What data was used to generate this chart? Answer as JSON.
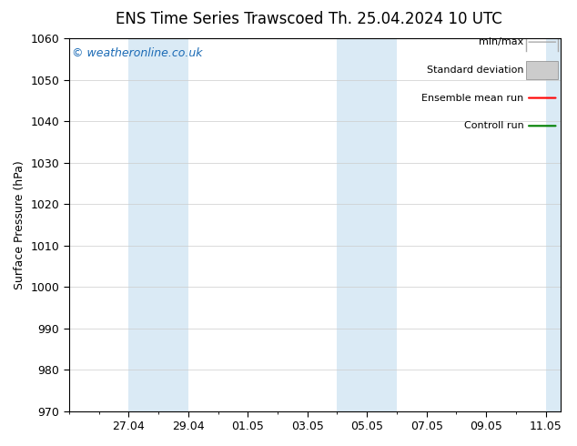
{
  "title_left": "ENS Time Series Trawscoed",
  "title_right": "Th. 25.04.2024 10 UTC",
  "ylabel": "Surface Pressure (hPa)",
  "ylim": [
    970,
    1060
  ],
  "yticks": [
    970,
    980,
    990,
    1000,
    1010,
    1020,
    1030,
    1040,
    1050,
    1060
  ],
  "xtick_labels": [
    "27.04",
    "29.04",
    "01.05",
    "03.05",
    "05.05",
    "07.05",
    "09.05",
    "11.05"
  ],
  "shaded_bands": [
    {
      "day0": 27,
      "month0": 4,
      "day1": 29,
      "month1": 4
    },
    {
      "day0": 4,
      "month0": 5,
      "day1": 6,
      "month1": 5
    },
    {
      "day0": 11,
      "month0": 5,
      "day1": 12,
      "month1": 5
    }
  ],
  "shaded_color": "#daeaf5",
  "background_color": "#ffffff",
  "plot_bg_color": "#ffffff",
  "watermark": "© weatheronline.co.uk",
  "watermark_color": "#1a6ab5",
  "legend_items": [
    {
      "label": "min/max",
      "color": "#aaaaaa",
      "type": "minmax"
    },
    {
      "label": "Standard deviation",
      "color": "#cccccc",
      "type": "stddev"
    },
    {
      "label": "Ensemble mean run",
      "color": "#ff0000",
      "type": "line"
    },
    {
      "label": "Controll run",
      "color": "#008000",
      "type": "line"
    }
  ],
  "grid_color": "#cccccc",
  "tick_color": "#000000",
  "border_color": "#000000",
  "title_fontsize": 12,
  "label_fontsize": 9,
  "tick_fontsize": 9,
  "legend_fontsize": 8
}
